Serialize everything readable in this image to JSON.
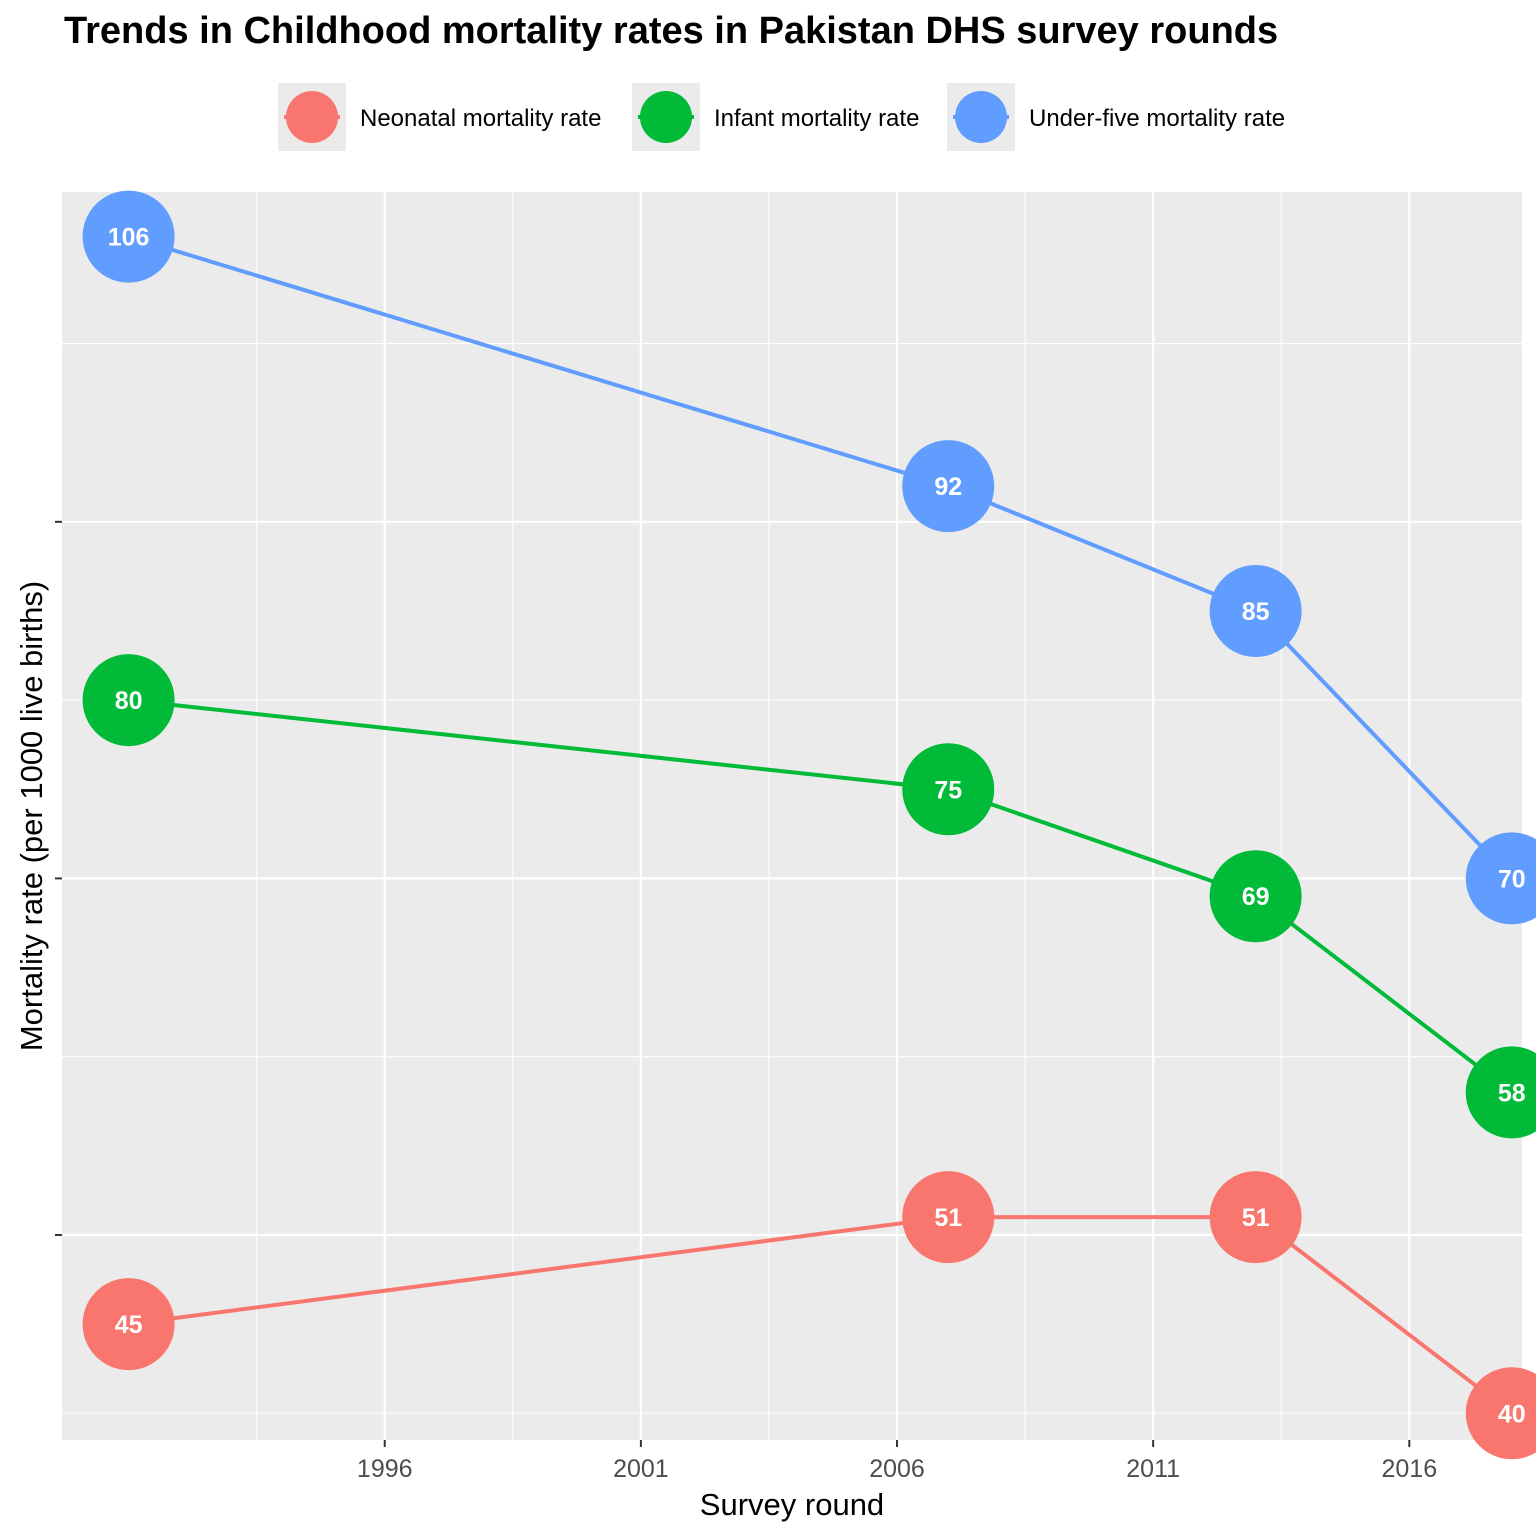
{
  "chart_data": {
    "type": "line",
    "title": "Trends in Childhood mortality rates in Pakistan DHS survey rounds",
    "xlabel": "Survey round",
    "ylabel": "Mortality rate (per 1000 live births)",
    "x_ticks": [
      1996,
      2001,
      2006,
      2011,
      2016
    ],
    "xlim": [
      1989.7,
      2018.2
    ],
    "ylim": [
      38.5,
      108.5
    ],
    "y_tick_labels_shown": false,
    "grid": true,
    "legend_position": "top",
    "series": [
      {
        "name": "Neonatal mortality rate",
        "color": "#F8766D",
        "x": [
          1991,
          2007,
          2013,
          2018
        ],
        "y": [
          45,
          51,
          51,
          40
        ]
      },
      {
        "name": "Infant mortality rate",
        "color": "#00BA38",
        "x": [
          1991,
          2007,
          2013,
          2018
        ],
        "y": [
          80,
          75,
          69,
          58
        ]
      },
      {
        "name": "Under-five mortality rate",
        "color": "#619CFF",
        "x": [
          1991,
          2007,
          2013,
          2018
        ],
        "y": [
          106,
          92,
          85,
          70
        ]
      }
    ]
  }
}
